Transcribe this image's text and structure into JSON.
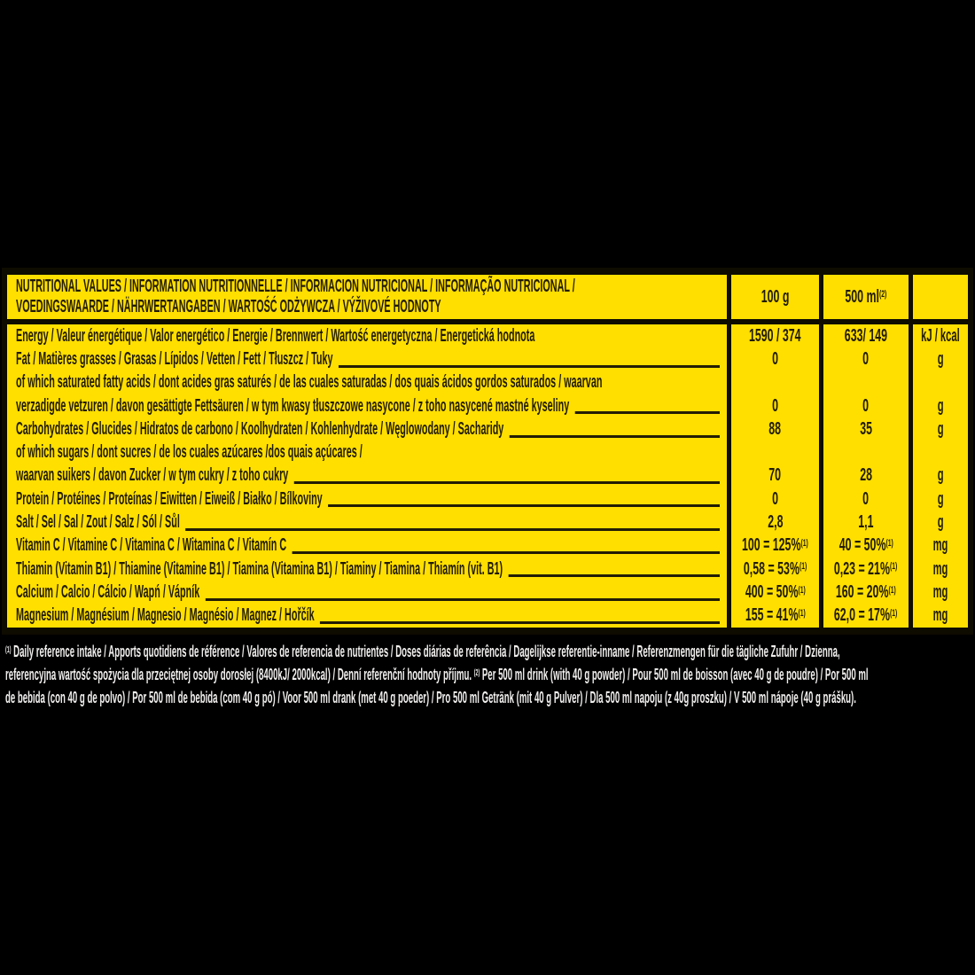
{
  "colors": {
    "background": "#000000",
    "panel_yellow": "#ffdf00",
    "ink": "#221c04",
    "footnote_text": "#f1efee"
  },
  "header": {
    "title_line1": "NUTRITIONAL VALUES / INFORMATION NUTRITIONNELLE / INFORMACION NUTRICIONAL / INFORMAÇÃO NUTRICIONAL /",
    "title_line2": "VOEDINGSWAARDE / NÄHRWERTANGABEN / WARTOŚĆ ODŻYWCZA / VÝŽIVOVÉ HODNOTY",
    "col_100g": "100 g",
    "col_500ml": "500 ml",
    "col_500ml_sup": "(2)"
  },
  "rows": [
    {
      "label": "Energy / Valeur énergétique / Valor energético / Energie / Brennwert / Wartość energetyczna / Energetická hodnota",
      "leader": false,
      "v100": "1590 / 374",
      "v500": "633/ 149",
      "unit": "kJ / kcal"
    },
    {
      "label": "Fat / Matières grasses / Grasas / Lípidos / Vetten / Fett / Tłuszcz / Tuky",
      "leader": true,
      "v100": "0",
      "v500": "0",
      "unit": "g"
    },
    {
      "label": "of which saturated fatty acids / dont acides gras saturés / de las cuales saturadas / dos quais ácidos gordos saturados / waarvan",
      "leader": false
    },
    {
      "label": "verzadigde vetzuren / davon gesättigte Fettsäuren / w tym kwasy tłuszczowe nasycone / z toho nasycené mastné kyseliny",
      "leader": true,
      "v100": "0",
      "v500": "0",
      "unit": "g"
    },
    {
      "label": "Carbohydrates / Glucides / Hidratos de carbono / Koolhydraten / Kohlenhydrate / Węglowodany / Sacharidy",
      "leader": true,
      "v100": "88",
      "v500": "35",
      "unit": "g"
    },
    {
      "label": "of which sugars / dont sucres / de los cuales azúcares /dos quais açúcares /",
      "leader": false
    },
    {
      "label": "waarvan suikers / davon Zucker / w tym cukry / z toho cukry",
      "leader": true,
      "v100": "70",
      "v500": "28",
      "unit": "g"
    },
    {
      "label": "Protein / Protéines / Proteínas / Eiwitten / Eiweiß / Białko / Bílkoviny",
      "leader": true,
      "v100": "0",
      "v500": "0",
      "unit": "g"
    },
    {
      "label": "Salt / Sel / Sal / Zout / Salz / Sól / Sůl",
      "leader": true,
      "v100": "2,8",
      "v500": "1,1",
      "unit": "g"
    },
    {
      "label": "Vitamin C / Vitamine C / Vitamina C / Witamina C / Vitamín C",
      "leader": true,
      "v100": "100 = 125%",
      "v100_sup": "(1)",
      "v500": "40 = 50%",
      "v500_sup": "(1)",
      "unit": "mg"
    },
    {
      "label": "Thiamin (Vitamin B1) / Thiamine (Vitamine B1) / Tiamina (Vitamina B1) / Tiaminy / Tiamina / Thiamín (vit. B1)",
      "leader": true,
      "v100": "0,58 = 53%",
      "v100_sup": "(1)",
      "v500": "0,23 = 21%",
      "v500_sup": "(1)",
      "unit": "mg"
    },
    {
      "label": "Calcium / Calcio / Cálcio / Wapń / Vápník",
      "leader": true,
      "v100": "400 = 50%",
      "v100_sup": "(1)",
      "v500": "160 = 20%",
      "v500_sup": "(1)",
      "unit": "mg"
    },
    {
      "label": "Magnesium / Magnésium / Magnesio / Magnésio / Magnez / Hořčík",
      "leader": true,
      "v100": "155 = 41%",
      "v100_sup": "(1)",
      "v500": "62,0 = 17%",
      "v500_sup": "(1)",
      "unit": "mg"
    }
  ],
  "footnotes": [
    {
      "segments": [
        {
          "sup": "(1)"
        },
        {
          "text": " Daily reference intake / Apports quotidiens de référence / Valores de referencia de nutrientes / Doses diárias de referência / Dagelijkse referentie-inname / Referenzmengen für die tägliche Zufuhr / Dzienna,"
        }
      ]
    },
    {
      "segments": [
        {
          "text": "referencyjna wartość spożycia dla przeciętnej osoby dorosłej (8400kJ/ 2000kcal) / Denní referenční hodnoty příjmu. "
        },
        {
          "sup": "(2)"
        },
        {
          "text": " Per 500 ml drink (with 40 g powder) / Pour 500 ml de boisson (avec 40 g de poudre) / Por 500 ml"
        }
      ]
    },
    {
      "segments": [
        {
          "text": "de bebida (con 40 g de polvo) / Por 500 ml de bebida (com 40 g pó) / Voor 500 ml drank (met 40 g poeder) / Pro 500 ml Getränk (mit 40 g Pulver) / Dla 500 ml napoju (z 40g proszku) / V 500 ml nápoje (40 g prášku)."
        }
      ]
    }
  ]
}
